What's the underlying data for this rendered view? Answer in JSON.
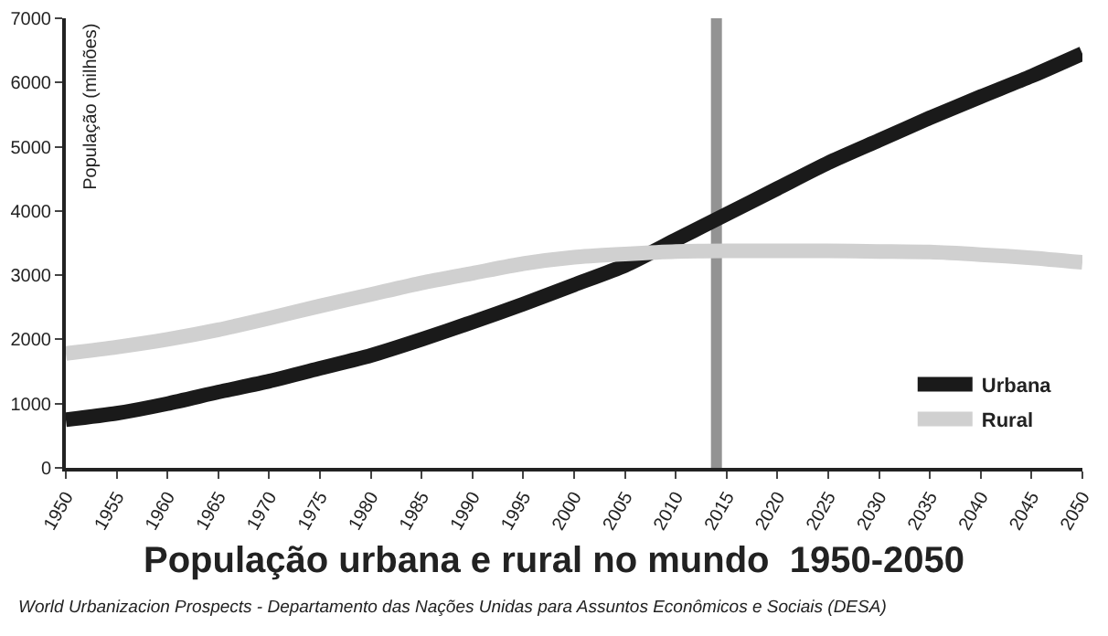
{
  "chart_data": {
    "type": "line",
    "title": "População urbana e rural no mundo  1950-2050",
    "ylabel": "População (milhões)",
    "annotations": [
      "World Urbanizacion Prospects - Departamento das Nações Unidas para Assuntos Econômicos e Sociais (DESA)"
    ],
    "x": [
      1950,
      1955,
      1960,
      1965,
      1970,
      1975,
      1980,
      1985,
      1990,
      1995,
      2000,
      2005,
      2010,
      2015,
      2020,
      2025,
      2030,
      2035,
      2040,
      2045,
      2050
    ],
    "series": [
      {
        "name": "Urbana",
        "color": "#1a1a1a",
        "values": [
          750,
          850,
          1000,
          1180,
          1350,
          1550,
          1750,
          2000,
          2270,
          2550,
          2850,
          3150,
          3550,
          3950,
          4350,
          4750,
          5100,
          5450,
          5780,
          6100,
          6450
        ]
      },
      {
        "name": "Rural",
        "color": "#d0d0d0",
        "values": [
          1780,
          1880,
          2000,
          2150,
          2330,
          2520,
          2700,
          2880,
          3030,
          3180,
          3280,
          3330,
          3370,
          3380,
          3380,
          3380,
          3370,
          3360,
          3320,
          3270,
          3200
        ]
      }
    ],
    "xlim": [
      1950,
      2050
    ],
    "xticks": [
      1950,
      1955,
      1960,
      1965,
      1970,
      1975,
      1980,
      1985,
      1990,
      1995,
      2000,
      2005,
      2010,
      2015,
      2020,
      2025,
      2030,
      2035,
      2040,
      2045,
      2050
    ],
    "ylim": [
      0,
      7000
    ],
    "yticks": [
      0,
      1000,
      2000,
      3000,
      4000,
      5000,
      6000,
      7000
    ],
    "ref_lines": [
      {
        "axis": "x",
        "value": 2014,
        "label": null,
        "color": "#939393"
      }
    ],
    "grid": false,
    "legend": "bottom right",
    "marker": "none",
    "line_style": "solid"
  }
}
